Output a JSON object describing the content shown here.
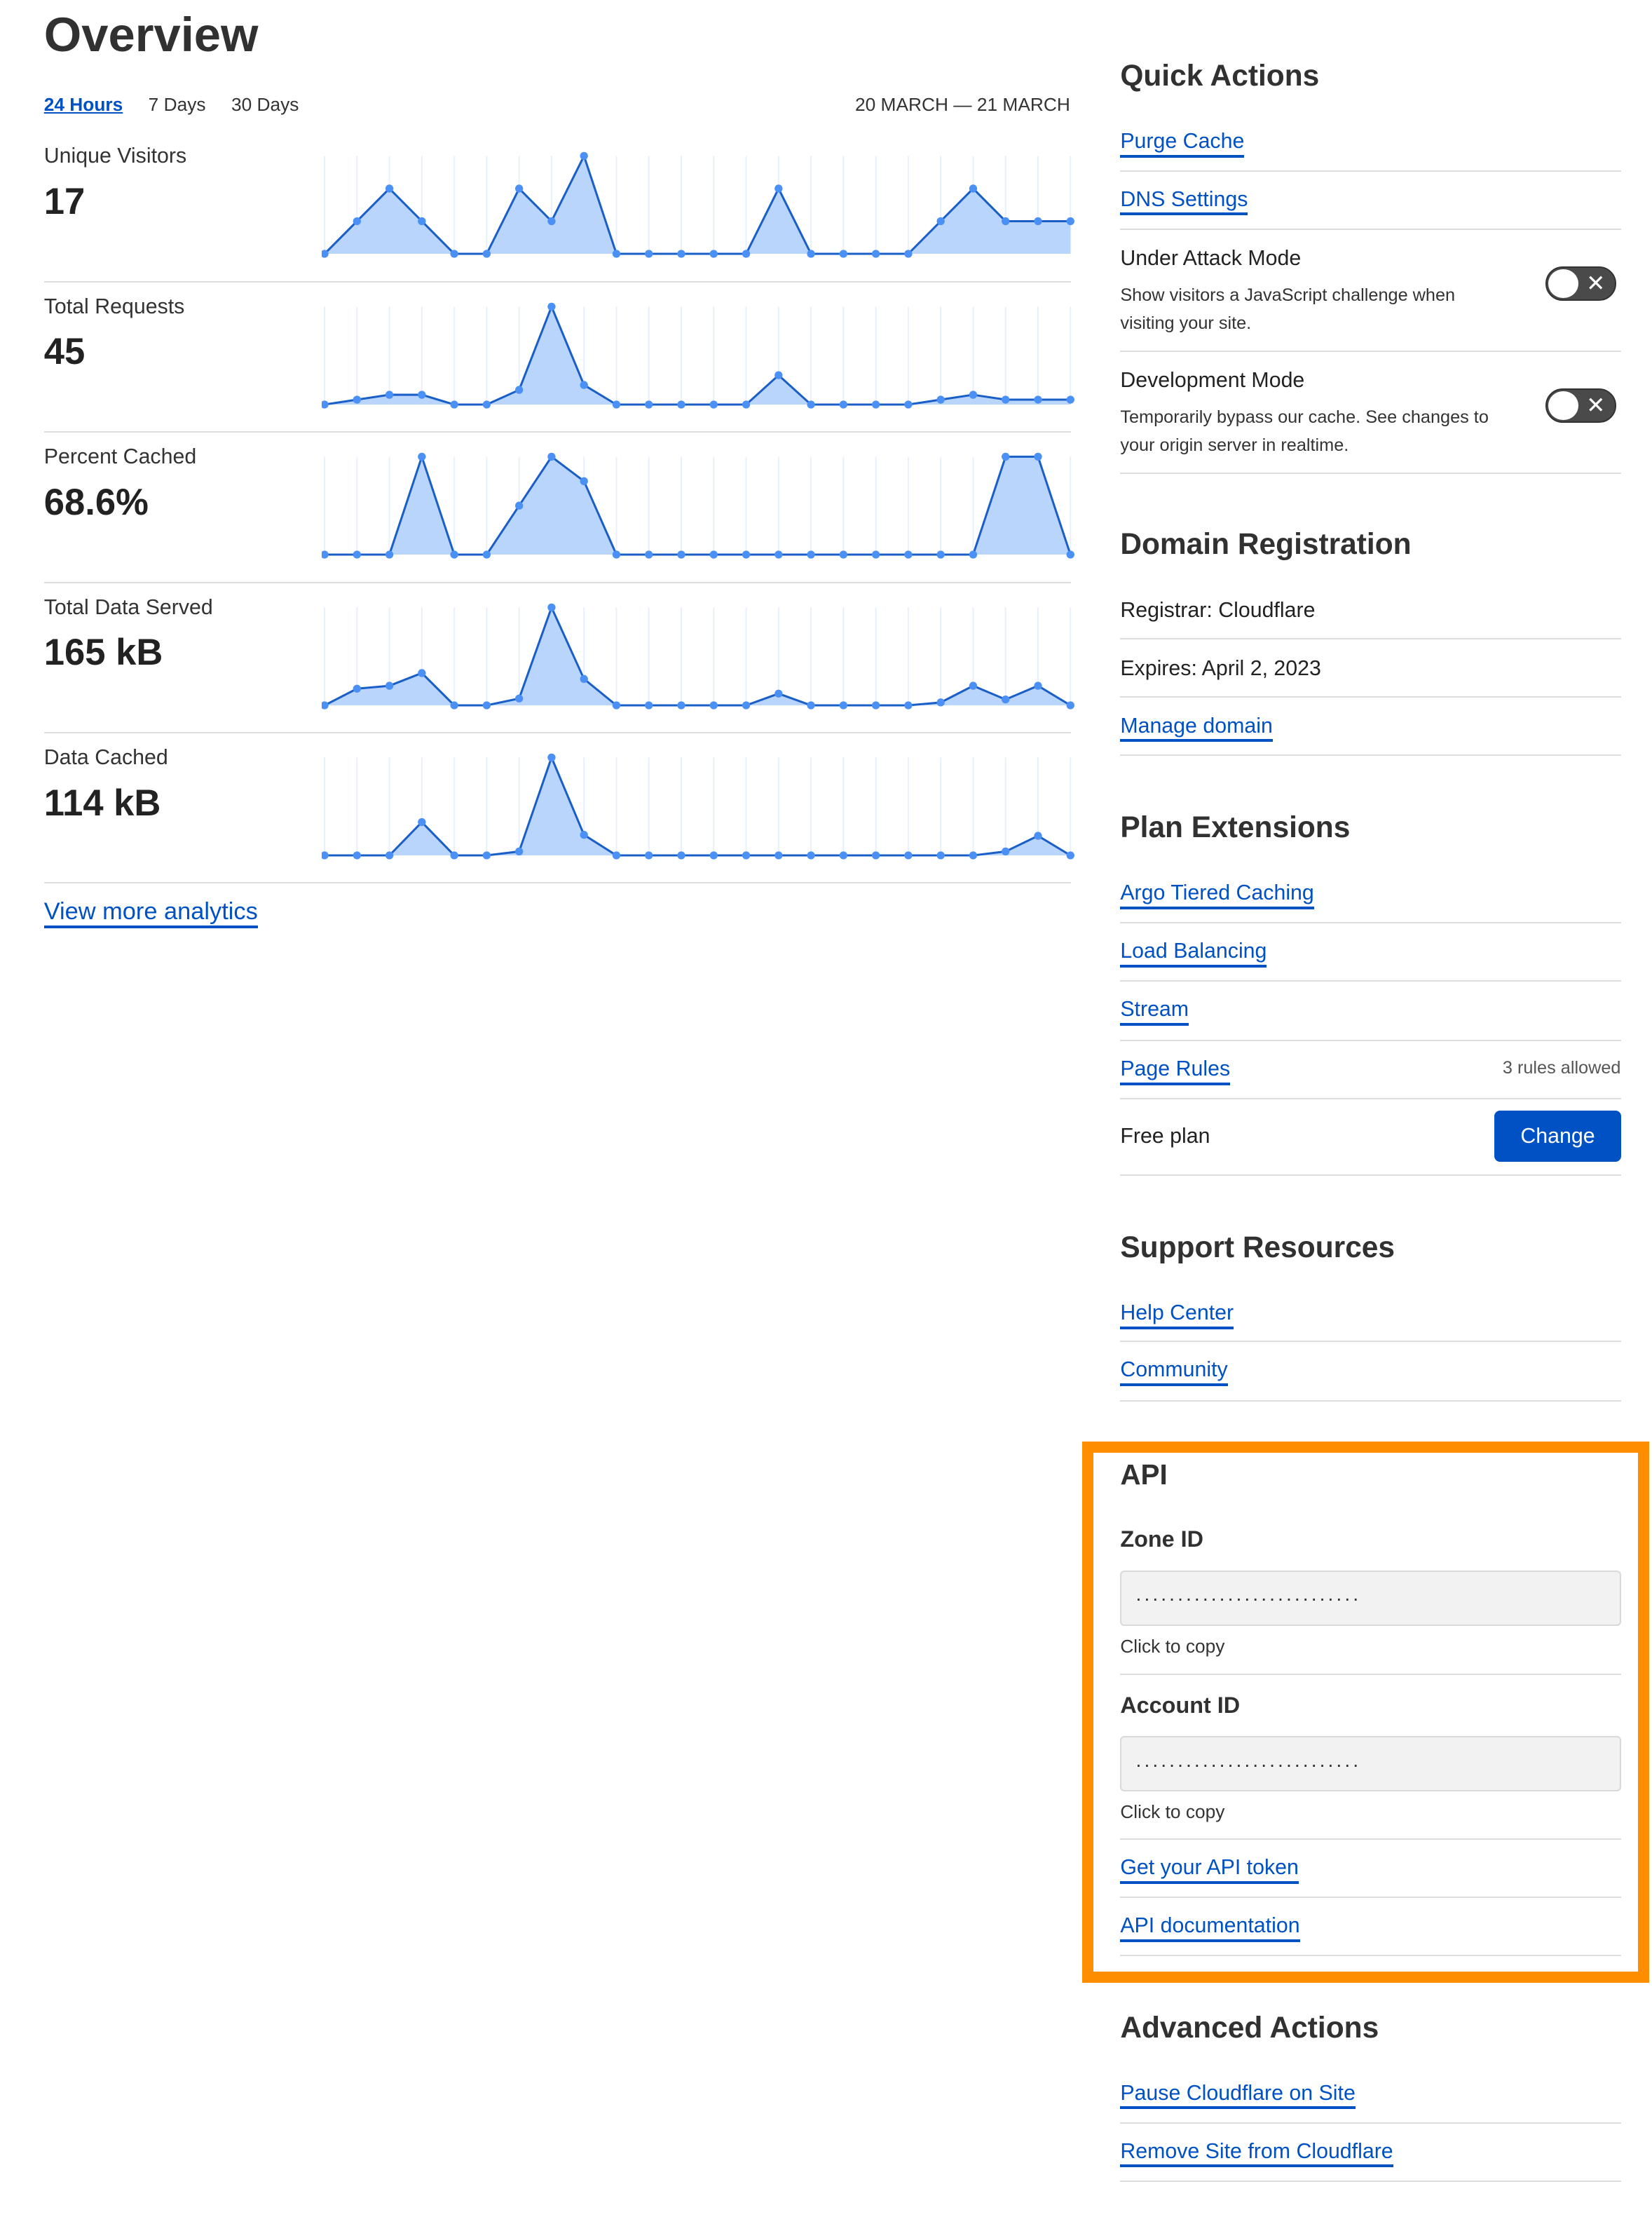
{
  "page_title": "Overview",
  "tabs": [
    {
      "label": "24 Hours",
      "active": true
    },
    {
      "label": "7 Days"
    },
    {
      "label": "30 Days"
    }
  ],
  "date_range": "20 MARCH — 21 MARCH",
  "colors": {
    "accent": "#0051c3",
    "line": "#1a5fc8",
    "fill": "#bad5fb",
    "point": "#4a90f5",
    "highlight": "#ff8d00"
  },
  "metrics": [
    {
      "label": "Unique Visitors",
      "value": "17"
    },
    {
      "label": "Total Requests",
      "value": "45"
    },
    {
      "label": "Percent Cached",
      "value": "68.6%"
    },
    {
      "label": "Total Data Served",
      "value": "165 kB"
    },
    {
      "label": "Data Cached",
      "value": "114 kB"
    }
  ],
  "chart_data": [
    {
      "type": "area",
      "values": [
        0,
        1,
        2,
        1,
        0,
        0,
        2,
        1,
        3,
        0,
        0,
        0,
        0,
        0,
        2,
        0,
        0,
        0,
        0,
        1,
        2,
        1,
        1,
        1
      ]
    },
    {
      "type": "area",
      "values": [
        0,
        1,
        2,
        2,
        0,
        0,
        3,
        20,
        4,
        0,
        0,
        0,
        0,
        0,
        6,
        0,
        0,
        0,
        0,
        1,
        2,
        1,
        1,
        1
      ]
    },
    {
      "type": "area",
      "values": [
        0,
        0,
        0,
        100,
        0,
        0,
        50,
        100,
        75,
        0,
        0,
        0,
        0,
        0,
        0,
        0,
        0,
        0,
        0,
        0,
        0,
        100,
        100,
        0
      ]
    },
    {
      "type": "area",
      "values": [
        0,
        17,
        20,
        33,
        0,
        0,
        7,
        100,
        27,
        0,
        0,
        0,
        0,
        0,
        12,
        0,
        0,
        0,
        0,
        3,
        20,
        6,
        20,
        0
      ]
    },
    {
      "type": "area",
      "values": [
        0,
        0,
        0,
        34,
        0,
        0,
        4,
        100,
        21,
        0,
        0,
        0,
        0,
        0,
        0,
        0,
        0,
        0,
        0,
        0,
        0,
        4,
        20,
        0
      ]
    }
  ],
  "view_more": "View more analytics",
  "quick_actions": {
    "title": "Quick Actions",
    "purge": "Purge Cache",
    "dns": "DNS Settings",
    "under_attack": {
      "title": "Under Attack Mode",
      "desc": "Show visitors a JavaScript challenge when visiting your site.",
      "enabled": false
    },
    "dev_mode": {
      "title": "Development Mode",
      "desc": "Temporarily bypass our cache. See changes to your origin server in realtime.",
      "enabled": false
    },
    "toggle_off_glyph": "✕"
  },
  "domain": {
    "title": "Domain Registration",
    "registrar": "Registrar: Cloudflare",
    "expires": "Expires: April 2, 2023",
    "manage": "Manage domain"
  },
  "plan": {
    "title": "Plan Extensions",
    "argo": "Argo Tiered Caching",
    "lb": "Load Balancing",
    "stream": "Stream",
    "page_rules": "Page Rules",
    "rules_allowed": "3 rules allowed",
    "plan_name": "Free plan",
    "change": "Change"
  },
  "support": {
    "title": "Support Resources",
    "help": "Help Center",
    "community": "Community"
  },
  "api": {
    "title": "API",
    "zone_label": "Zone ID",
    "zone_value": "...........................",
    "copy": "Click to copy",
    "account_label": "Account ID",
    "account_value": "...........................",
    "token": "Get your API token",
    "docs": "API documentation"
  },
  "advanced": {
    "title": "Advanced Actions",
    "pause": "Pause Cloudflare on Site",
    "remove": "Remove Site from Cloudflare"
  }
}
